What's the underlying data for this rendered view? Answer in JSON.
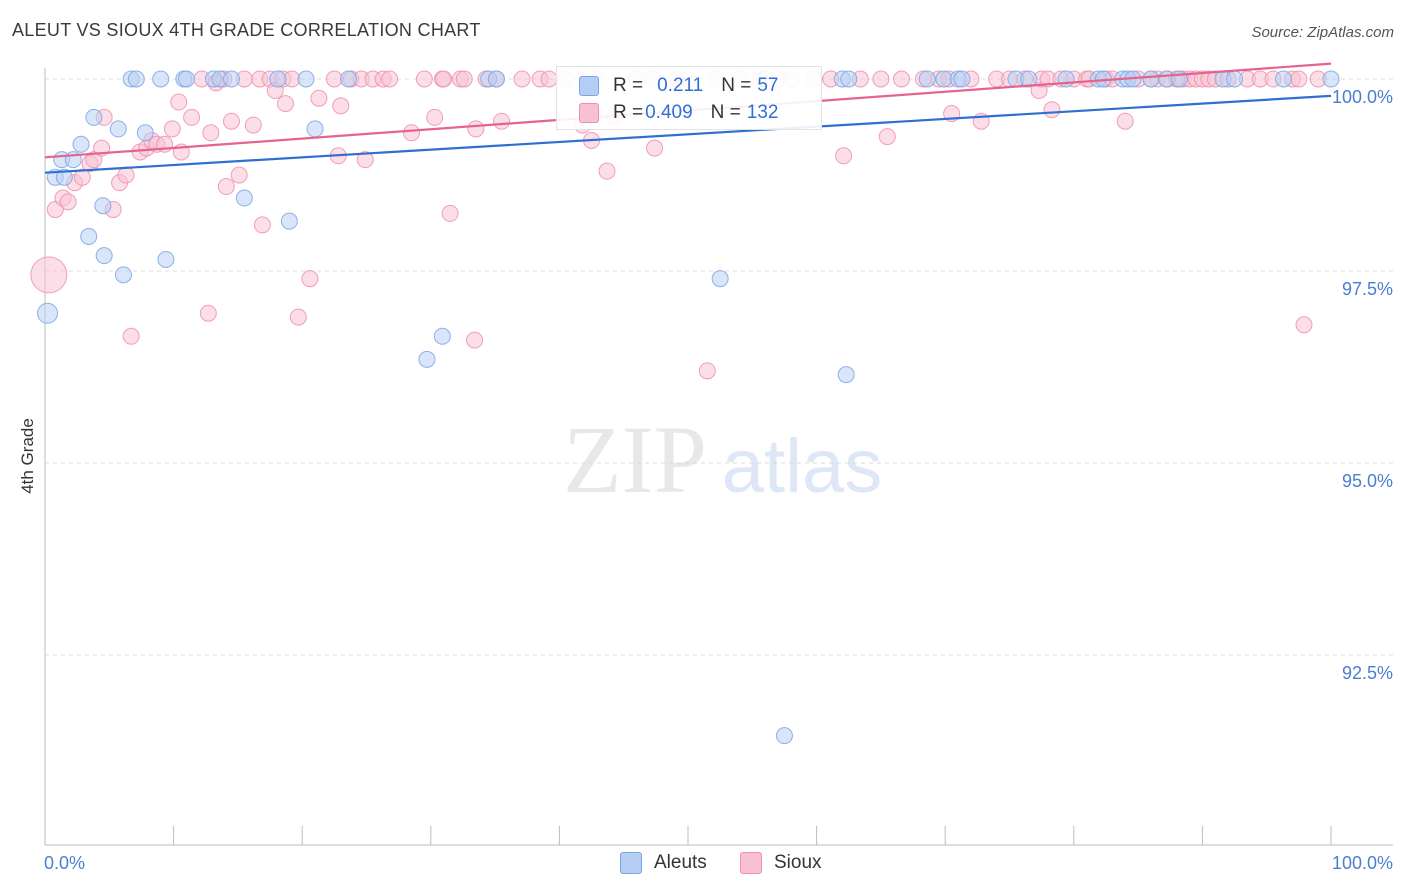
{
  "title": "ALEUT VS SIOUX 4TH GRADE CORRELATION CHART",
  "source": "Source: ZipAtlas.com",
  "watermark": {
    "zip": "ZIP",
    "atlas": "atlas"
  },
  "legend_top": {
    "rows": [
      {
        "r_label": "R = ",
        "r_value": "0.211",
        "n_label": "N = ",
        "n_value": "57",
        "color": "#a9c6f0"
      },
      {
        "r_label": "R = ",
        "r_value": "0.409",
        "n_label": "N = ",
        "n_value": "132",
        "color": "#f4b4c8"
      }
    ]
  },
  "legend_bottom": [
    {
      "label": "Aleuts",
      "color": "#b3cdf3"
    },
    {
      "label": "Sioux",
      "color": "#f7c1d2"
    }
  ],
  "chart_data": {
    "type": "scatter",
    "title": "ALEUT VS SIOUX 4TH GRADE CORRELATION CHART",
    "xlabel": "",
    "ylabel": "4th Grade",
    "xlim": [
      0,
      100
    ],
    "ylim": [
      90.0,
      100.35
    ],
    "x_tick_labels": [
      "0.0%",
      "100.0%"
    ],
    "y_ticks": [
      100.0,
      97.5,
      95.0,
      92.5
    ],
    "y_tick_labels": [
      "100.0%",
      "97.5%",
      "95.0%",
      "92.5%"
    ],
    "grid": true,
    "series": [
      {
        "name": "Aleuts",
        "color": "#7aa6e6",
        "fill": "#b9d0f2",
        "line_color": "#2e6fcf",
        "trend": [
          [
            0,
            98.78
          ],
          [
            100,
            99.78
          ]
        ],
        "points": [
          [
            0.2,
            96.95
          ],
          [
            0.8,
            98.72
          ],
          [
            1.3,
            98.95
          ],
          [
            1.5,
            98.72
          ],
          [
            2.2,
            98.95
          ],
          [
            2.8,
            99.15
          ],
          [
            3.4,
            97.95
          ],
          [
            3.8,
            99.5
          ],
          [
            4.5,
            98.35
          ],
          [
            4.6,
            97.7
          ],
          [
            5.7,
            99.35
          ],
          [
            6.1,
            97.45
          ],
          [
            6.7,
            100
          ],
          [
            7.1,
            100
          ],
          [
            7.8,
            99.3
          ],
          [
            9.0,
            100
          ],
          [
            9.4,
            97.65
          ],
          [
            10.8,
            100
          ],
          [
            11.0,
            100
          ],
          [
            13.1,
            100
          ],
          [
            13.6,
            100
          ],
          [
            14.5,
            100
          ],
          [
            15.5,
            98.45
          ],
          [
            18.1,
            100
          ],
          [
            19.0,
            98.15
          ],
          [
            20.3,
            100
          ],
          [
            21.0,
            99.35
          ],
          [
            23.6,
            100
          ],
          [
            29.7,
            96.35
          ],
          [
            30.9,
            96.65
          ],
          [
            34.5,
            100
          ],
          [
            35.1,
            100
          ],
          [
            57.5,
            91.45
          ],
          [
            52.5,
            97.4
          ],
          [
            56.0,
            100
          ],
          [
            62.0,
            100
          ],
          [
            62.3,
            96.15
          ],
          [
            68.6,
            100
          ],
          [
            69.9,
            100
          ],
          [
            71.0,
            100
          ],
          [
            71.3,
            100
          ],
          [
            75.5,
            100
          ],
          [
            76.5,
            100
          ],
          [
            79.4,
            100
          ],
          [
            81.9,
            100
          ],
          [
            82.3,
            100
          ],
          [
            83.8,
            100
          ],
          [
            84.2,
            100
          ],
          [
            84.6,
            100
          ],
          [
            86.0,
            100
          ],
          [
            87.2,
            100
          ],
          [
            88.2,
            100
          ],
          [
            91.6,
            100
          ],
          [
            92.5,
            100
          ],
          [
            96.3,
            100
          ],
          [
            100,
            100
          ],
          [
            62.5,
            100
          ]
        ]
      },
      {
        "name": "Sioux",
        "color": "#ef8fac",
        "fill": "#f7c3d3",
        "line_color": "#e5648f",
        "trend": [
          [
            0,
            98.98
          ],
          [
            100,
            100.2
          ]
        ],
        "points": [
          [
            0.3,
            97.45
          ],
          [
            0.8,
            98.3
          ],
          [
            1.4,
            98.45
          ],
          [
            1.8,
            98.4
          ],
          [
            2.3,
            98.65
          ],
          [
            2.9,
            98.72
          ],
          [
            3.5,
            98.9
          ],
          [
            3.8,
            98.95
          ],
          [
            4.4,
            99.1
          ],
          [
            4.6,
            99.5
          ],
          [
            5.3,
            98.3
          ],
          [
            5.8,
            98.65
          ],
          [
            6.3,
            98.75
          ],
          [
            6.7,
            96.65
          ],
          [
            7.4,
            99.05
          ],
          [
            7.9,
            99.1
          ],
          [
            8.3,
            99.2
          ],
          [
            8.7,
            99.15
          ],
          [
            9.3,
            99.15
          ],
          [
            9.9,
            99.35
          ],
          [
            10.4,
            99.7
          ],
          [
            10.6,
            99.05
          ],
          [
            11.4,
            99.5
          ],
          [
            12.2,
            100
          ],
          [
            12.7,
            96.95
          ],
          [
            12.9,
            99.3
          ],
          [
            13.3,
            99.95
          ],
          [
            13.9,
            100
          ],
          [
            14.1,
            98.6
          ],
          [
            14.5,
            99.45
          ],
          [
            15.1,
            98.75
          ],
          [
            15.5,
            100
          ],
          [
            16.2,
            99.4
          ],
          [
            16.7,
            100
          ],
          [
            16.9,
            98.1
          ],
          [
            17.5,
            100
          ],
          [
            17.9,
            99.85
          ],
          [
            18.5,
            100
          ],
          [
            18.7,
            99.68
          ],
          [
            19.2,
            100
          ],
          [
            19.7,
            96.9
          ],
          [
            20.6,
            97.4
          ],
          [
            21.3,
            99.75
          ],
          [
            22.5,
            100
          ],
          [
            22.8,
            99.0
          ],
          [
            23.0,
            99.65
          ],
          [
            23.8,
            100
          ],
          [
            24.6,
            100
          ],
          [
            24.9,
            98.95
          ],
          [
            25.5,
            100
          ],
          [
            26.3,
            100
          ],
          [
            26.8,
            100
          ],
          [
            28.5,
            99.3
          ],
          [
            29.5,
            100
          ],
          [
            30.3,
            99.5
          ],
          [
            30.9,
            100
          ],
          [
            31.0,
            100
          ],
          [
            31.5,
            98.25
          ],
          [
            32.3,
            100
          ],
          [
            32.6,
            100
          ],
          [
            33.4,
            96.6
          ],
          [
            33.5,
            99.35
          ],
          [
            34.3,
            100
          ],
          [
            35.1,
            100
          ],
          [
            35.5,
            99.45
          ],
          [
            37.1,
            100
          ],
          [
            38.5,
            100
          ],
          [
            39.2,
            100
          ],
          [
            40.5,
            100
          ],
          [
            41.8,
            99.4
          ],
          [
            41.9,
            100
          ],
          [
            42.5,
            99.2
          ],
          [
            42.8,
            100
          ],
          [
            43.7,
            98.8
          ],
          [
            44.3,
            99.5
          ],
          [
            46.0,
            100
          ],
          [
            47.3,
            100
          ],
          [
            47.4,
            99.1
          ],
          [
            49.2,
            100
          ],
          [
            50.0,
            100
          ],
          [
            51.5,
            96.2
          ],
          [
            52.2,
            100
          ],
          [
            54.0,
            100
          ],
          [
            55.6,
            100
          ],
          [
            57.0,
            100
          ],
          [
            58.0,
            100
          ],
          [
            59.8,
            100
          ],
          [
            61.1,
            100
          ],
          [
            62.1,
            99.0
          ],
          [
            63.4,
            100
          ],
          [
            65.0,
            100
          ],
          [
            65.5,
            99.25
          ],
          [
            66.6,
            100
          ],
          [
            68.3,
            100
          ],
          [
            69.5,
            100
          ],
          [
            70.3,
            100
          ],
          [
            70.5,
            99.55
          ],
          [
            72.0,
            100
          ],
          [
            72.8,
            99.45
          ],
          [
            74.0,
            100
          ],
          [
            75.0,
            100
          ],
          [
            76.2,
            100
          ],
          [
            77.3,
            99.85
          ],
          [
            77.5,
            100
          ],
          [
            78.0,
            100
          ],
          [
            78.3,
            99.6
          ],
          [
            79.0,
            100
          ],
          [
            80.0,
            100
          ],
          [
            81.0,
            100
          ],
          [
            81.2,
            100
          ],
          [
            82.5,
            100
          ],
          [
            83.0,
            100
          ],
          [
            84.0,
            99.45
          ],
          [
            85.0,
            100
          ],
          [
            86.5,
            100
          ],
          [
            87.3,
            100
          ],
          [
            88.5,
            100
          ],
          [
            89.0,
            100
          ],
          [
            89.5,
            100
          ],
          [
            90.0,
            100
          ],
          [
            90.5,
            100
          ],
          [
            91.0,
            100
          ],
          [
            92.0,
            100
          ],
          [
            93.5,
            100
          ],
          [
            94.5,
            100
          ],
          [
            95.5,
            100
          ],
          [
            97.0,
            100
          ],
          [
            97.5,
            100
          ],
          [
            97.9,
            96.8
          ],
          [
            99.0,
            100
          ],
          [
            88.0,
            100
          ],
          [
            86.0,
            100
          ]
        ]
      }
    ]
  }
}
